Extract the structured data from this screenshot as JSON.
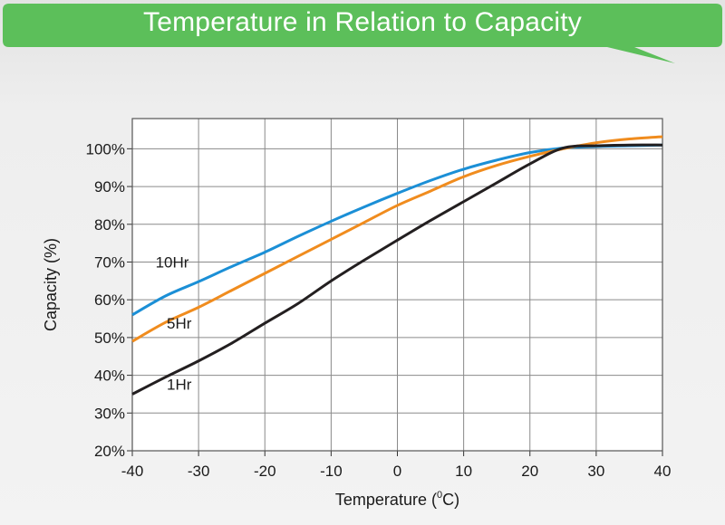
{
  "chart_data": {
    "type": "line",
    "title": "Temperature in Relation to Capacity",
    "xlabel": "Temperature (°C)",
    "xlabel_parts": {
      "prefix": "Temperature (",
      "superscript": "0",
      "suffix": "C)"
    },
    "ylabel": "Capacity (%)",
    "xlim": [
      -40,
      40
    ],
    "ylim": [
      20,
      108
    ],
    "x_ticks": [
      -40,
      -30,
      -20,
      -10,
      0,
      10,
      20,
      30,
      40
    ],
    "x_tick_labels": [
      "-40",
      "-30",
      "-20",
      "-10",
      "0",
      "10",
      "20",
      "30",
      "40"
    ],
    "y_ticks": [
      20,
      30,
      40,
      50,
      60,
      70,
      80,
      90,
      100
    ],
    "y_tick_labels": [
      "20%",
      "30%",
      "40%",
      "50%",
      "60%",
      "70%",
      "80%",
      "90%",
      "100%"
    ],
    "grid": true,
    "series": [
      {
        "name": "10Hr",
        "color": "#1b8fd6",
        "label_at": [
          -36.5,
          68.5
        ],
        "x": [
          -40,
          -35,
          -30,
          -25,
          -20,
          -15,
          -10,
          -5,
          0,
          5,
          10,
          15,
          20,
          25,
          30,
          35,
          40
        ],
        "y": [
          56,
          61,
          64.8,
          68.8,
          72.6,
          76.8,
          80.8,
          84.6,
          88.2,
          91.6,
          94.6,
          97,
          99,
          100.2,
          100.6,
          100.8,
          101
        ]
      },
      {
        "name": "5Hr",
        "color": "#f08c1e",
        "label_at": [
          -34.8,
          52.4
        ],
        "x": [
          -40,
          -35,
          -30,
          -25,
          -20,
          -15,
          -10,
          -5,
          0,
          5,
          10,
          15,
          20,
          25,
          30,
          35,
          40
        ],
        "y": [
          49,
          54,
          58,
          62.5,
          67,
          71.5,
          76,
          80.5,
          85,
          88.8,
          92.6,
          95.6,
          98,
          100,
          101.6,
          102.6,
          103.2
        ]
      },
      {
        "name": "1Hr",
        "color": "#231f20",
        "label_at": [
          -34.8,
          36.2
        ],
        "x": [
          -40,
          -35,
          -30,
          -25,
          -20,
          -15,
          -10,
          -5,
          0,
          5,
          10,
          15,
          20,
          25,
          30,
          35,
          40
        ],
        "y": [
          35,
          39.5,
          43.8,
          48.5,
          53.8,
          59,
          65,
          70.5,
          75.8,
          81,
          86,
          91,
          96,
          100.2,
          100.8,
          101,
          101
        ]
      }
    ]
  },
  "colors": {
    "banner": "#5cbf5a",
    "grid": "#8a8a8a",
    "plot_bg": "#ffffff"
  }
}
